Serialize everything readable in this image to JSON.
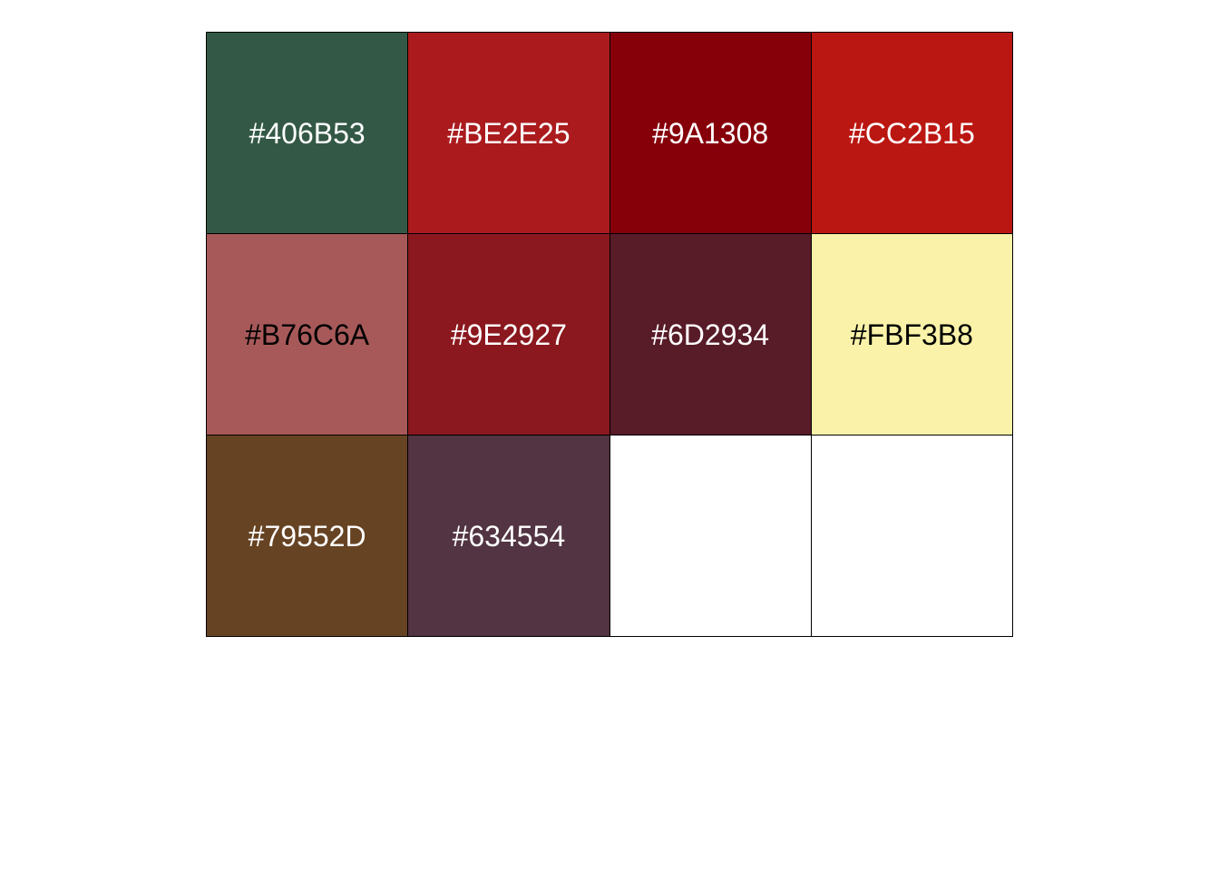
{
  "palette": {
    "swatches": [
      {
        "label": "#406B53",
        "fill": "#335946",
        "text_color": "#ffffff"
      },
      {
        "label": "#BE2E25",
        "fill": "#ab1b1e",
        "text_color": "#ffffff"
      },
      {
        "label": "#9A1308",
        "fill": "#86000a",
        "text_color": "#ffffff"
      },
      {
        "label": "#CC2B15",
        "fill": "#bb1712",
        "text_color": "#ffffff"
      },
      {
        "label": "#B76C6A",
        "fill": "#a75959",
        "text_color": "#000000"
      },
      {
        "label": "#9E2927",
        "fill": "#8a181e",
        "text_color": "#ffffff"
      },
      {
        "label": "#6D2934",
        "fill": "#581b28",
        "text_color": "#ffffff"
      },
      {
        "label": "#FBF3B8",
        "fill": "#f9f2a8",
        "text_color": "#000000"
      },
      {
        "label": "#79552D",
        "fill": "#664323",
        "text_color": "#ffffff"
      },
      {
        "label": "#634554",
        "fill": "#523442",
        "text_color": "#ffffff"
      },
      {
        "label": "",
        "fill": "#ffffff",
        "text_color": "#000000"
      },
      {
        "label": "",
        "fill": "#ffffff",
        "text_color": "#000000"
      }
    ]
  }
}
